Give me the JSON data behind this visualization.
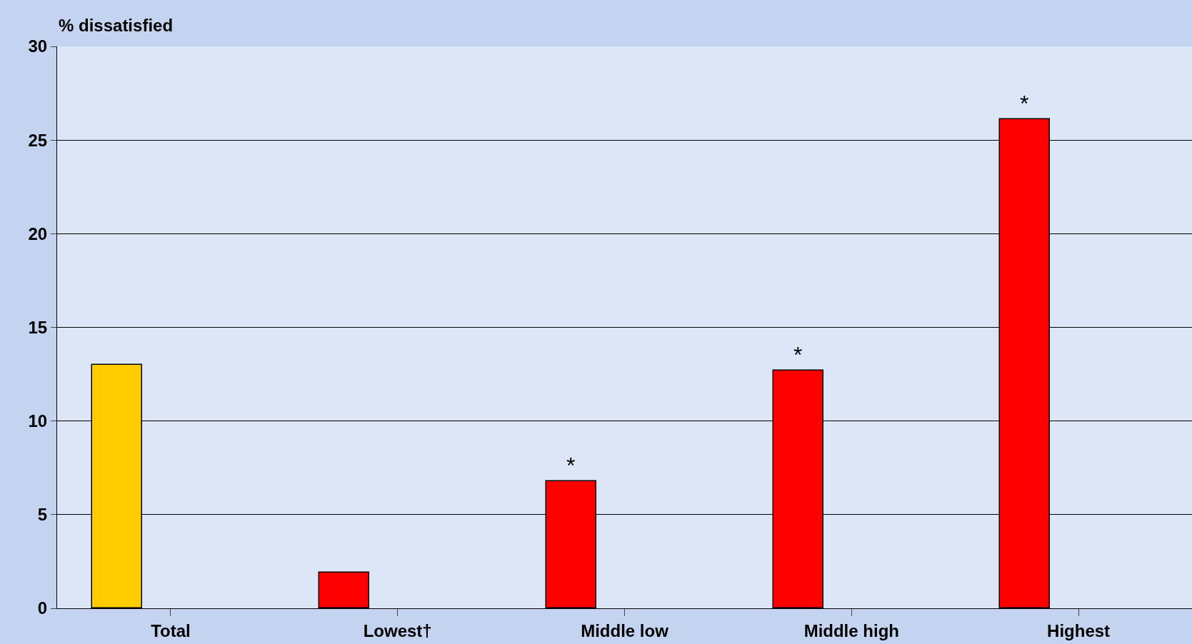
{
  "chart_data": {
    "type": "bar",
    "ylabel": "% dissatisfied",
    "categories": [
      "Total",
      "Lowest†",
      "Middle low",
      "Middle high",
      "Highest"
    ],
    "values": [
      13.0,
      1.9,
      6.8,
      12.7,
      26.1
    ],
    "colors": [
      "#ffcc00",
      "#ff0000",
      "#ff0000",
      "#ff0000",
      "#ff0000"
    ],
    "value_labels": [
      null,
      null,
      "*",
      "*",
      "*"
    ],
    "ylim": [
      0,
      30
    ],
    "yticks": [
      0,
      5,
      10,
      15,
      20,
      25,
      30
    ],
    "grid": "y"
  }
}
